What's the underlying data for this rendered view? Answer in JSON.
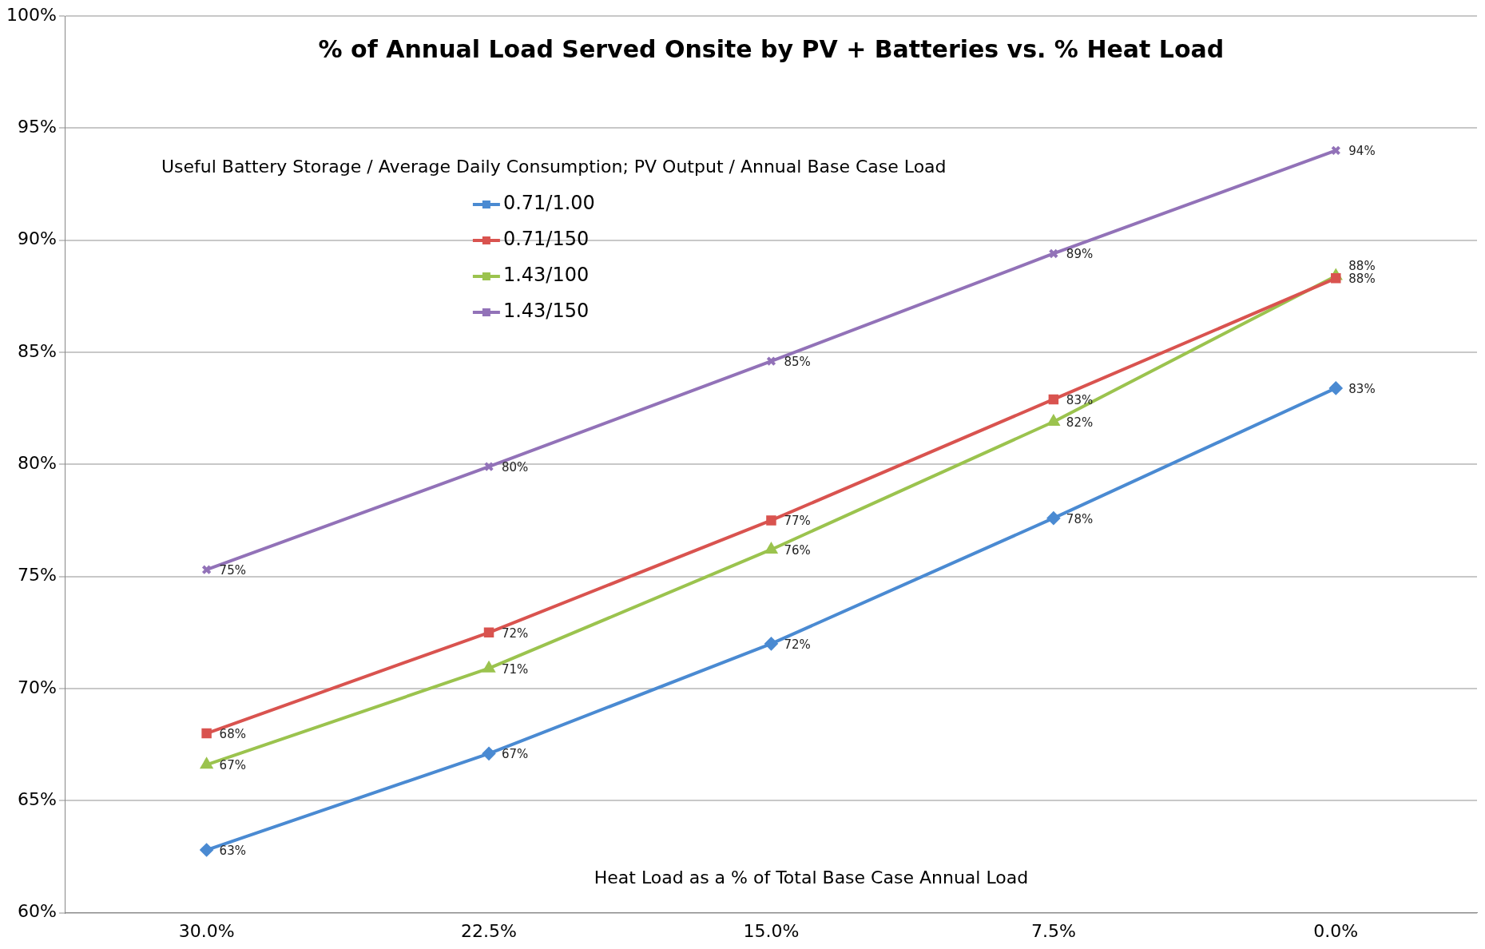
{
  "chart_data": {
    "type": "line",
    "title": "% of Annual Load Served Onsite by PV + Batteries vs. % Heat Load",
    "xlabel": "Heat Load as a % of Total Base Case Annual Load",
    "legend_title": "Useful Battery Storage / Average Daily Consumption; PV Output / Annual Base Case Load",
    "categories": [
      "30.0%",
      "22.5%",
      "15.0%",
      "7.5%",
      "0.0%"
    ],
    "series": [
      {
        "name": "0.71/1.00",
        "color": "#4a8ad2",
        "marker": "diamond",
        "values": [
          62.8,
          67.1,
          72.0,
          77.6,
          83.4
        ],
        "value_labels": [
          "63%",
          "67%",
          "72%",
          "78%",
          "83%"
        ]
      },
      {
        "name": "0.71/150",
        "color": "#d9534f",
        "marker": "square",
        "values": [
          68.0,
          72.5,
          77.5,
          82.9,
          88.3
        ],
        "value_labels": [
          "68%",
          "72%",
          "77%",
          "83%",
          "88%"
        ]
      },
      {
        "name": "1.43/100",
        "color": "#9bc34e",
        "marker": "triangle",
        "values": [
          66.6,
          70.9,
          76.2,
          81.9,
          88.4
        ],
        "value_labels": [
          "67%",
          "71%",
          "76%",
          "82%",
          "88%"
        ]
      },
      {
        "name": "1.43/150",
        "color": "#9272b8",
        "marker": "cross",
        "values": [
          75.3,
          79.9,
          84.6,
          89.4,
          94.0
        ],
        "value_labels": [
          "75%",
          "80%",
          "85%",
          "89%",
          "94%"
        ]
      }
    ],
    "ylim": [
      60,
      100
    ],
    "yticks": [
      {
        "value": 60,
        "label": "60%"
      },
      {
        "value": 65,
        "label": "65%"
      },
      {
        "value": 70,
        "label": "70%"
      },
      {
        "value": 75,
        "label": "75%"
      },
      {
        "value": 80,
        "label": "80%"
      },
      {
        "value": 85,
        "label": "85%"
      },
      {
        "value": 90,
        "label": "90%"
      },
      {
        "value": 95,
        "label": "95%"
      },
      {
        "value": 100,
        "label": "100%"
      }
    ],
    "grid": "y",
    "legend": "top left",
    "line_style": "solid"
  }
}
